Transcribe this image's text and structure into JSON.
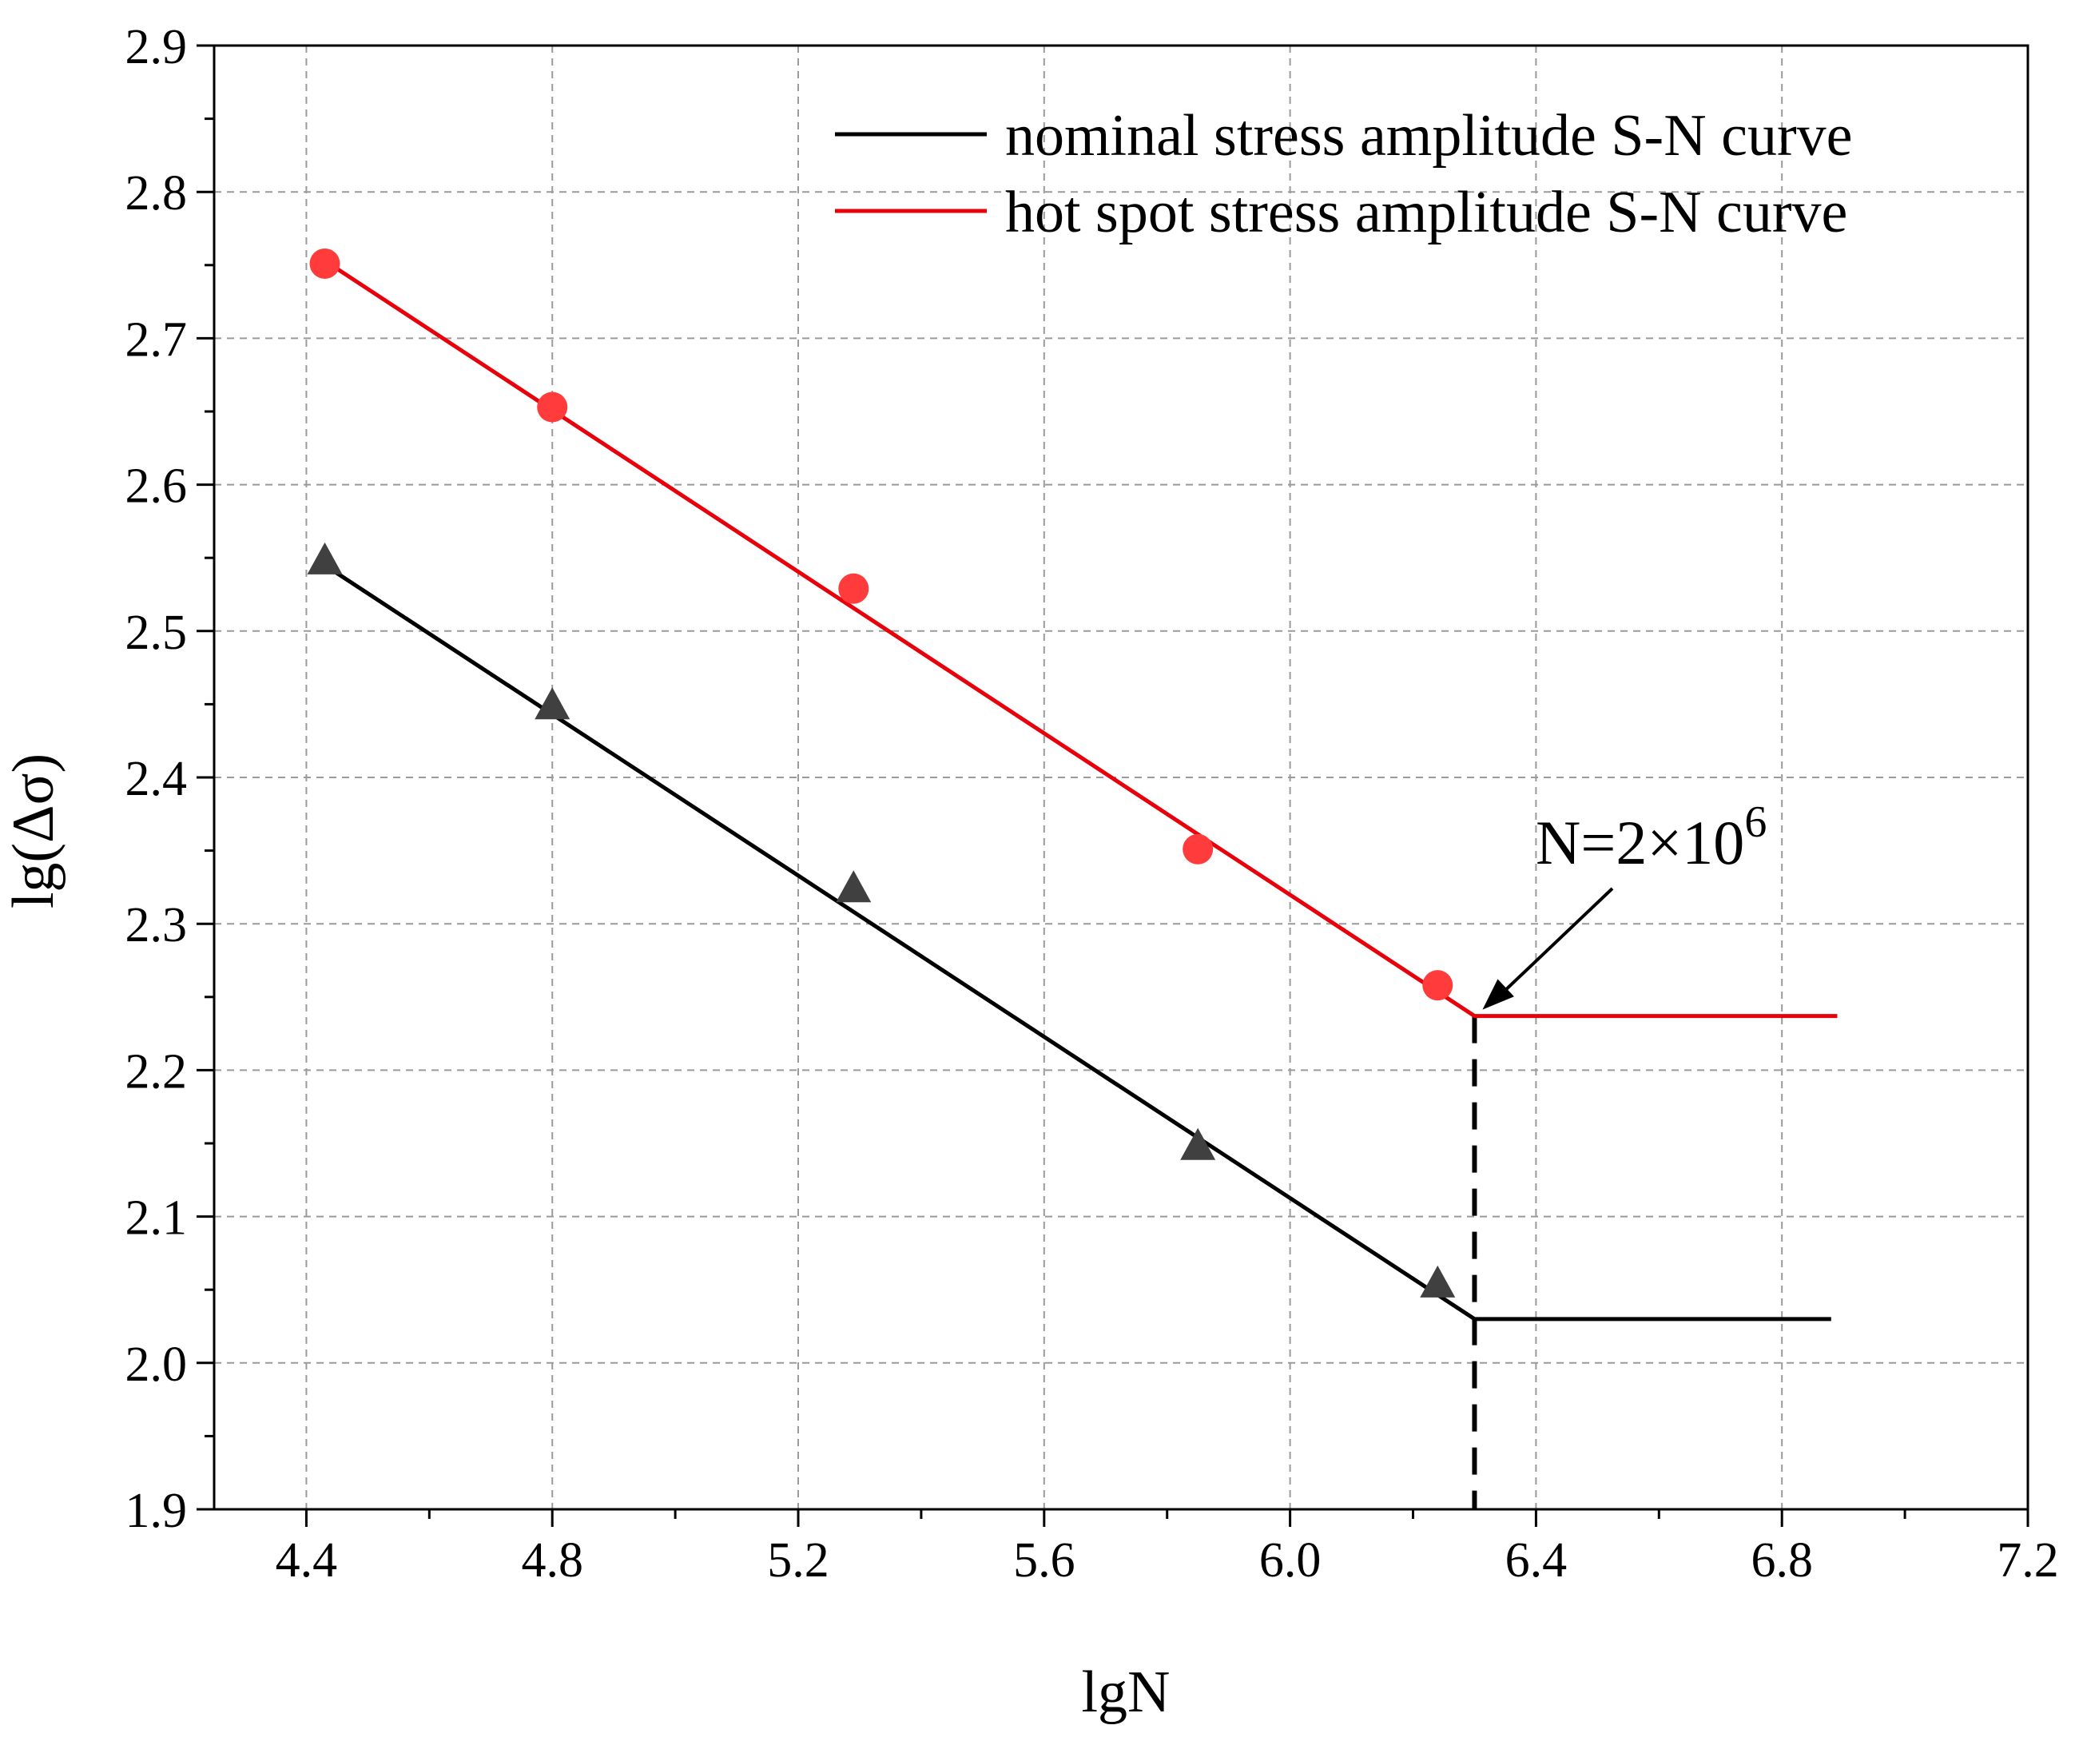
{
  "chart_data": {
    "type": "line",
    "title": "",
    "xlabel": "lgN",
    "ylabel": "lg(Δσ)",
    "xlim": [
      4.25,
      7.2
    ],
    "ylim": [
      1.9,
      2.9
    ],
    "x_ticks": [
      4.4,
      4.8,
      5.2,
      5.6,
      6.0,
      6.4,
      6.8,
      7.2
    ],
    "x_tick_labels": [
      "4.4",
      "4.8",
      "5.2",
      "5.6",
      "6.0",
      "6.4",
      "6.8",
      "7.2"
    ],
    "y_ticks": [
      1.9,
      2.0,
      2.1,
      2.2,
      2.3,
      2.4,
      2.5,
      2.6,
      2.7,
      2.8,
      2.9
    ],
    "y_tick_labels": [
      "1.9",
      "2.0",
      "2.1",
      "2.2",
      "2.3",
      "2.4",
      "2.5",
      "2.6",
      "2.7",
      "2.8",
      "2.9"
    ],
    "grid": true,
    "legend_position": "top-right",
    "series": [
      {
        "name": "nominal stress amplitude S-N curve",
        "color": "#000000",
        "marker": "triangle",
        "marker_color": "#404040",
        "points": {
          "x": [
            4.43,
            4.8,
            5.29,
            5.85,
            6.24
          ],
          "y": [
            2.547,
            2.448,
            2.323,
            2.147,
            2.053
          ]
        },
        "fit_line": {
          "x": [
            4.43,
            6.3,
            6.88
          ],
          "y": [
            2.545,
            2.03,
            2.03
          ]
        }
      },
      {
        "name": "hot spot stress amplitude S-N curve",
        "color": "#e8000b",
        "marker": "circle",
        "marker_color": "#ff3b3b",
        "points": {
          "x": [
            4.43,
            4.8,
            5.29,
            5.85,
            6.24
          ],
          "y": [
            2.751,
            2.653,
            2.529,
            2.351,
            2.258
          ]
        },
        "fit_line": {
          "x": [
            4.43,
            6.3,
            6.89
          ],
          "y": [
            2.753,
            2.237,
            2.237
          ]
        }
      }
    ],
    "annotations": [
      {
        "text": "N=2×10",
        "superscript": "6",
        "x": 6.3,
        "y": 2.237
      }
    ],
    "reference_lines": [
      {
        "orientation": "vertical",
        "x": 6.3,
        "y_range": [
          1.9,
          2.237
        ],
        "style": "dashed",
        "color": "#000000"
      }
    ]
  }
}
